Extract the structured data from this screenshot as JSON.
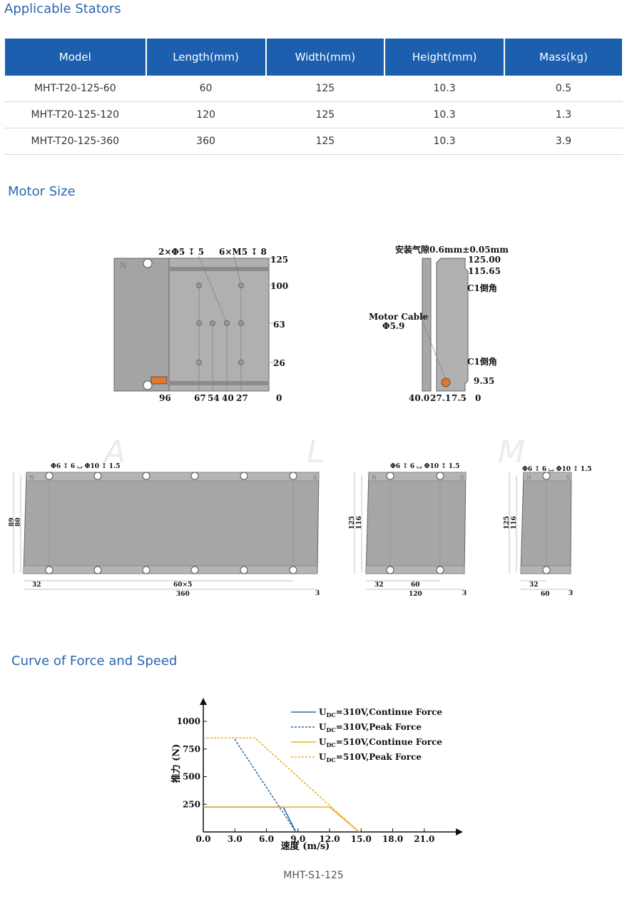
{
  "sections": {
    "stators_title": "Applicable Stators",
    "motor_size_title": "Motor Size",
    "curve_title": "Curve of Force and Speed"
  },
  "stator_table": {
    "headers": [
      "Model",
      "Length(mm)",
      "Width(mm)",
      "Height(mm)",
      "Mass(kg)"
    ],
    "rows": [
      [
        "MHT-T20-125-60",
        "60",
        "125",
        "10.3",
        "0.5"
      ],
      [
        "MHT-T20-125-120",
        "120",
        "125",
        "10.3",
        "1.3"
      ],
      [
        "MHT-T20-125-360",
        "360",
        "125",
        "10.3",
        "3.9"
      ]
    ]
  },
  "drawing_top": {
    "holes_label": "2×Φ5 ↧ 5",
    "screws_label": "6×M5 ↧ 8",
    "y_dims": [
      "125",
      "100",
      "63",
      "26",
      "0"
    ],
    "x_dims": [
      "96",
      "67",
      "54",
      "40",
      "27"
    ],
    "pole_n": "N"
  },
  "drawing_side": {
    "gap_label": "安装气隙0.6mm±0.05mm",
    "dims_right": [
      "125.00",
      "115.65",
      "9.35",
      "0"
    ],
    "chamfer_top": "C1倒角",
    "chamfer_bottom": "C1倒角",
    "cable_label": "Motor Cable",
    "cable_dia": "Φ5.9",
    "x_dims": [
      "40.0",
      "27.1",
      "7.5"
    ]
  },
  "watermark": [
    "A",
    "L",
    "M"
  ],
  "stators_drawings": [
    {
      "holes": "Φ6 ↧ 6 ⌴ Φ10 ↧ 1.5",
      "h_outer": "89",
      "h_inner": "80",
      "edge": "32",
      "pitch": "60×5",
      "length": "360",
      "end": "3",
      "n": "N",
      "s": "S"
    },
    {
      "holes": "Φ6 ↧ 6 ⌴ Φ10 ↧ 1.5",
      "h_outer": "125",
      "h_inner": "116",
      "edge": "32",
      "pitch": "60",
      "length": "120",
      "end": "3",
      "n": "N",
      "s": "S"
    },
    {
      "holes": "Φ6 ↧ 6 ⌴ Φ10 ↧ 1.5",
      "h_outer": "125",
      "h_inner": "116",
      "edge": "32",
      "length": "60",
      "end": "3",
      "n": "N",
      "s": "S"
    }
  ],
  "chart_data": {
    "type": "line",
    "title": "",
    "xlabel": "速度 (m/s)",
    "ylabel": "推力 (N)",
    "xlim": [
      0,
      24
    ],
    "ylim": [
      0,
      1200
    ],
    "x_ticks": [
      "0.0",
      "3.0",
      "6.0",
      "9.0",
      "12.0",
      "15.0",
      "18.0",
      "21.0"
    ],
    "y_ticks": [
      "250",
      "500",
      "750",
      "1000"
    ],
    "series": [
      {
        "name": "U_DC=310V,Continue Force",
        "label_main": "U",
        "label_sub": "DC",
        "label_rest": "=310V,Continue Force",
        "color": "#2f6aa8",
        "dash": false,
        "x": [
          0,
          7.6,
          8.8
        ],
        "y": [
          225,
          225,
          0
        ]
      },
      {
        "name": "U_DC=310V,Peak Force",
        "label_main": "U",
        "label_sub": "DC",
        "label_rest": "=310V,Peak Force",
        "color": "#2f6aa8",
        "dash": true,
        "x": [
          0,
          2.9,
          8.8
        ],
        "y": [
          850,
          850,
          0
        ]
      },
      {
        "name": "U_DC=510V,Continue Force",
        "label_main": "U",
        "label_sub": "DC",
        "label_rest": "=510V,Continue Force",
        "color": "#f0a92d",
        "dash": false,
        "x": [
          0,
          12.0,
          14.8
        ],
        "y": [
          225,
          225,
          0
        ]
      },
      {
        "name": "U_DC=510V,Peak Force",
        "label_main": "U",
        "label_sub": "DC",
        "label_rest": "=510V,Peak Force",
        "color": "#f0a92d",
        "dash": true,
        "x": [
          0,
          4.9,
          14.8
        ],
        "y": [
          850,
          850,
          0
        ]
      }
    ]
  },
  "caption": "MHT-S1-125"
}
